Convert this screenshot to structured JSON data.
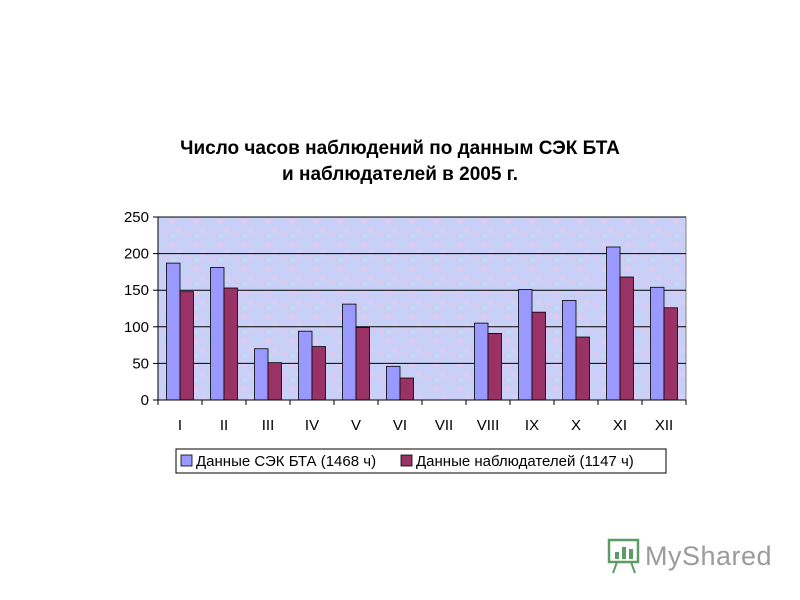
{
  "chart_data": {
    "type": "bar",
    "title_lines": [
      "Число часов наблюдений по данным СЭК БТА",
      "и наблюдателей в 2005 г."
    ],
    "categories": [
      "I",
      "II",
      "III",
      "IV",
      "V",
      "VI",
      "VII",
      "VIII",
      "IX",
      "X",
      "XI",
      "XII"
    ],
    "series": [
      {
        "name": "Данные СЭК БТА (1468 ч)",
        "color": "#9999ff",
        "values": [
          187,
          181,
          70,
          94,
          131,
          46,
          0,
          105,
          151,
          136,
          209,
          154
        ]
      },
      {
        "name": "Данные наблюдателей (1147 ч)",
        "color": "#993366",
        "values": [
          148,
          153,
          51,
          73,
          99,
          30,
          0,
          91,
          120,
          86,
          168,
          126
        ]
      }
    ],
    "ylim": [
      0,
      250
    ],
    "yticks": [
      0,
      50,
      100,
      150,
      200,
      250
    ],
    "grid": true,
    "legend_position": "bottom"
  },
  "watermark": {
    "text": "MyShared"
  }
}
